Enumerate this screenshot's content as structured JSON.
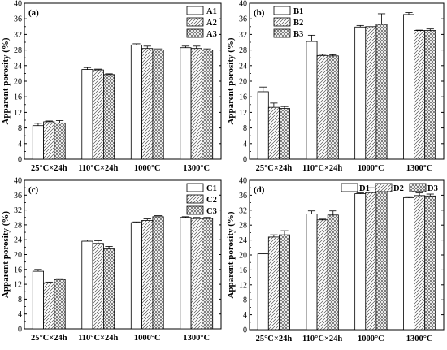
{
  "chart_data": [
    {
      "type": "bar",
      "panel_label": "(a)",
      "ylabel": "Apparent porosity (%)",
      "ylim": [
        0,
        40
      ],
      "yticks": [
        0,
        4,
        8,
        12,
        16,
        20,
        24,
        28,
        32,
        36,
        40
      ],
      "categories": [
        "25°C×24h",
        "110°C×24h",
        "1000°C",
        "1300°C"
      ],
      "legend_position": "top-right",
      "series": [
        {
          "name": "A1",
          "pattern": "plain",
          "values": [
            8.6,
            23.0,
            29.3,
            28.6
          ],
          "errors": [
            0.6,
            0.5,
            0.3,
            0.4
          ]
        },
        {
          "name": "A2",
          "pattern": "hatch",
          "values": [
            9.6,
            22.9,
            28.4,
            28.4
          ],
          "errors": [
            0.2,
            0.2,
            0.6,
            0.6
          ]
        },
        {
          "name": "A3",
          "pattern": "crosshatch",
          "values": [
            9.3,
            21.7,
            28.0,
            28.0
          ],
          "errors": [
            0.6,
            0.2,
            0.3,
            0.3
          ]
        }
      ]
    },
    {
      "type": "bar",
      "panel_label": "(b)",
      "ylabel": "Apparent porosity (%)",
      "ylim": [
        0,
        40
      ],
      "yticks": [
        0,
        4,
        8,
        12,
        16,
        20,
        24,
        28,
        32,
        36,
        40
      ],
      "categories": [
        "25°C×24h",
        "110°C×24h",
        "1000°C",
        "1300°C"
      ],
      "legend_position": "top-left",
      "series": [
        {
          "name": "B1",
          "pattern": "plain",
          "values": [
            17.3,
            30.2,
            33.9,
            37.1
          ],
          "errors": [
            1.2,
            1.6,
            0.4,
            0.5
          ]
        },
        {
          "name": "B2",
          "pattern": "hatch",
          "values": [
            13.3,
            26.6,
            34.0,
            33.0
          ],
          "errors": [
            1.1,
            0.3,
            0.7,
            0.1
          ]
        },
        {
          "name": "B3",
          "pattern": "crosshatch",
          "values": [
            13.0,
            26.5,
            34.6,
            33.0
          ],
          "errors": [
            0.5,
            0.3,
            2.7,
            0.4
          ]
        }
      ]
    },
    {
      "type": "bar",
      "panel_label": "(c)",
      "ylabel": "Apparent porosity (%)",
      "ylim": [
        0,
        40
      ],
      "yticks": [
        0,
        4,
        8,
        12,
        16,
        20,
        24,
        28,
        32,
        36,
        40
      ],
      "categories": [
        "25°C×24h",
        "110°C×24h",
        "1000°C",
        "1300°C"
      ],
      "legend_position": "top-right",
      "series": [
        {
          "name": "C1",
          "pattern": "plain",
          "values": [
            15.5,
            23.6,
            28.6,
            30.0
          ],
          "errors": [
            0.5,
            0.3,
            0.2,
            0.2
          ]
        },
        {
          "name": "C2",
          "pattern": "hatch",
          "values": [
            12.4,
            23.0,
            29.2,
            29.7
          ],
          "errors": [
            0.2,
            0.7,
            0.4,
            0.3
          ]
        },
        {
          "name": "C3",
          "pattern": "crosshatch",
          "values": [
            13.3,
            21.5,
            30.2,
            29.7
          ],
          "errors": [
            0.2,
            0.7,
            0.3,
            0.3
          ]
        }
      ]
    },
    {
      "type": "bar",
      "panel_label": "(d)",
      "ylabel": "Apparent porosity (%)",
      "ylim": [
        0,
        40
      ],
      "yticks": [
        0,
        4,
        8,
        12,
        16,
        20,
        24,
        28,
        32,
        36,
        40
      ],
      "categories": [
        "25°C×24h",
        "110°C×24h",
        "1000°C",
        "1300°C"
      ],
      "legend_position": "top-right",
      "series": [
        {
          "name": "D1",
          "pattern": "plain",
          "values": [
            20.3,
            31.0,
            36.4,
            35.3
          ],
          "errors": [
            0.2,
            0.8,
            0.2,
            0.3
          ]
        },
        {
          "name": "D2",
          "pattern": "hatch",
          "values": [
            24.8,
            29.4,
            36.7,
            35.9
          ],
          "errors": [
            0.6,
            0.2,
            1.3,
            0.7
          ]
        },
        {
          "name": "D3",
          "pattern": "crosshatch",
          "values": [
            25.4,
            30.7,
            37.2,
            35.8
          ],
          "errors": [
            1.1,
            1.1,
            0.6,
            0.5
          ]
        }
      ]
    }
  ]
}
